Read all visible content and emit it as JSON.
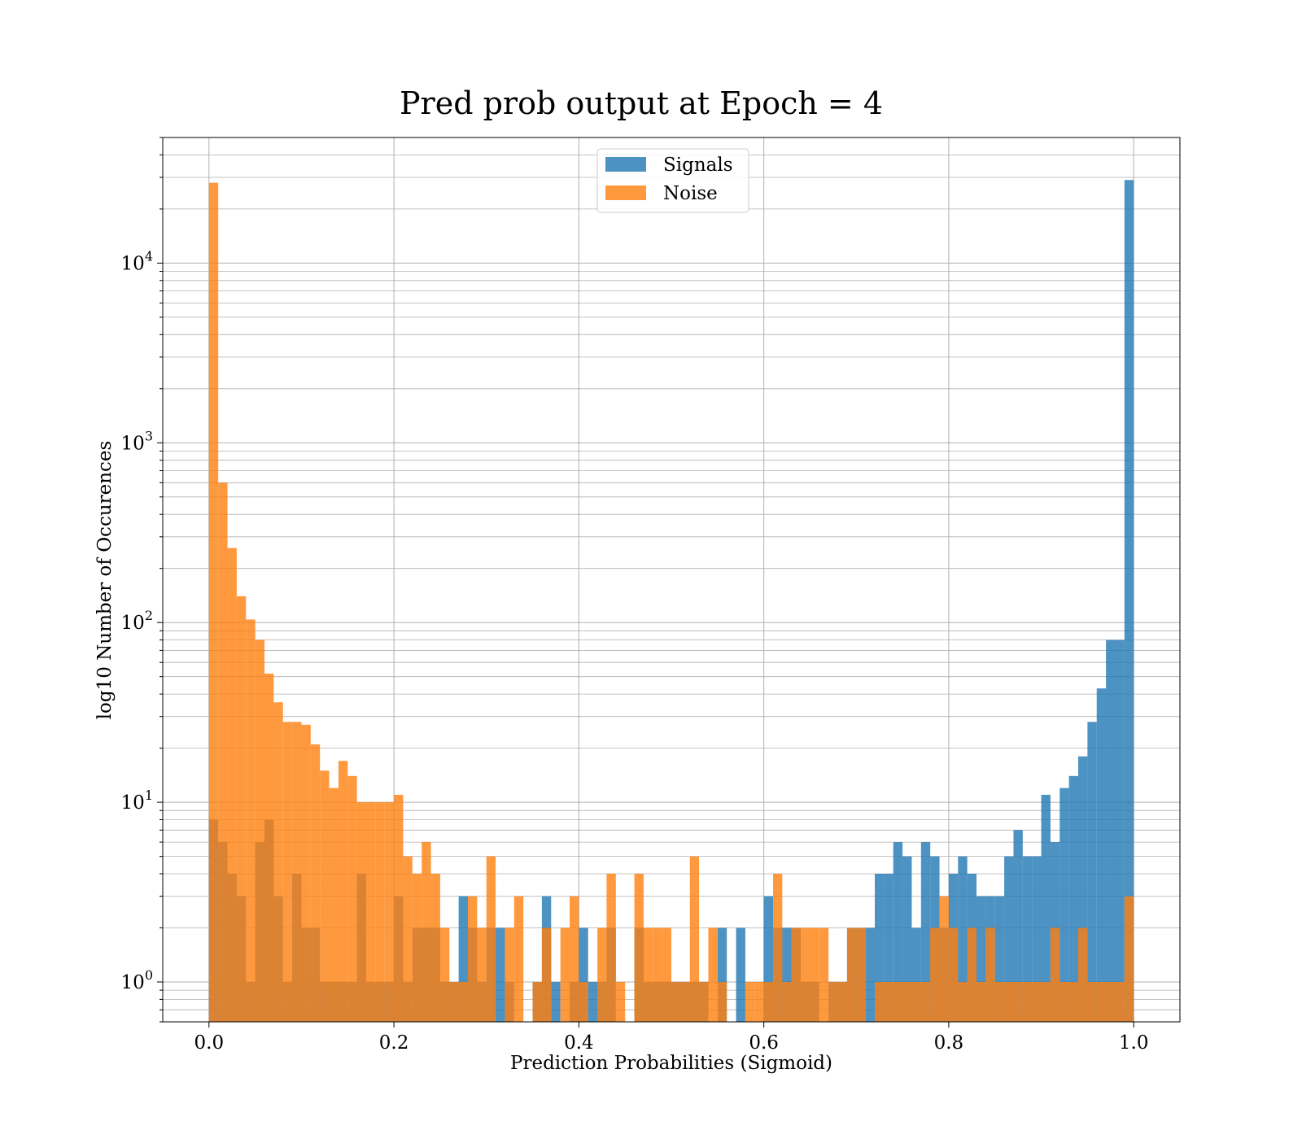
{
  "chart_data": {
    "type": "bar",
    "subtype": "overlaid-histogram",
    "title": "Pred prob output at Epoch = 4",
    "xlabel": "Prediction Probabilities (Sigmoid)",
    "ylabel": "log10 Number of Occurences",
    "xlim": [
      -0.05,
      1.05
    ],
    "ylim": [
      0.6,
      50000
    ],
    "yscale": "log",
    "grid": true,
    "legend_position": "top-center",
    "bin_width": 0.01,
    "x_ticks": [
      0.0,
      0.2,
      0.4,
      0.6,
      0.8,
      1.0
    ],
    "x_tick_labels": [
      "0.0",
      "0.2",
      "0.4",
      "0.6",
      "0.8",
      "1.0"
    ],
    "y_ticks": [
      {
        "value": 1,
        "base": "10",
        "exp": "0"
      },
      {
        "value": 10,
        "base": "10",
        "exp": "1"
      },
      {
        "value": 100,
        "base": "10",
        "exp": "2"
      },
      {
        "value": 1000,
        "base": "10",
        "exp": "3"
      },
      {
        "value": 10000,
        "base": "10",
        "exp": "4"
      }
    ],
    "colors": {
      "signals": "#1f77b4",
      "noise": "#ff7f0e"
    },
    "series": [
      {
        "name": "Signals",
        "color": "#1f77b4",
        "alpha": 0.8,
        "values": [
          8,
          6,
          4,
          3,
          1,
          6,
          8,
          3,
          1,
          4,
          2,
          2,
          1,
          1,
          1,
          1,
          4,
          1,
          1,
          1,
          3,
          1,
          2,
          2,
          2,
          1,
          1,
          3,
          2,
          1,
          2,
          2,
          1,
          0,
          0,
          1,
          3,
          1,
          0,
          1,
          2,
          1,
          1,
          2,
          0,
          0,
          2,
          1,
          1,
          1,
          1,
          1,
          1,
          1,
          0,
          2,
          0,
          2,
          0,
          0,
          3,
          2,
          2,
          2,
          1,
          1,
          0,
          1,
          1,
          2,
          2,
          2,
          4,
          4,
          6,
          5,
          2,
          6,
          5,
          2,
          4,
          5,
          4,
          3,
          3,
          3,
          5,
          7,
          5,
          5,
          11,
          6,
          12,
          14,
          18,
          28,
          43,
          80,
          80,
          29000
        ]
      },
      {
        "name": "Noise",
        "color": "#ff7f0e",
        "alpha": 0.8,
        "values": [
          28000,
          600,
          260,
          140,
          104,
          80,
          52,
          36,
          28,
          28,
          27,
          21,
          15,
          12,
          17,
          14,
          10,
          10,
          10,
          10,
          11,
          5,
          4,
          6,
          4,
          2,
          1,
          1,
          3,
          2,
          5,
          0,
          2,
          3,
          0,
          1,
          2,
          0,
          2,
          3,
          1,
          0,
          2,
          4,
          1,
          0,
          4,
          2,
          2,
          2,
          1,
          1,
          5,
          1,
          2,
          1,
          0,
          0,
          1,
          1,
          1,
          4,
          1,
          2,
          2,
          2,
          2,
          1,
          1,
          2,
          2,
          0,
          1,
          1,
          1,
          1,
          1,
          1,
          2,
          3,
          2,
          1,
          2,
          1,
          2,
          1,
          1,
          1,
          1,
          1,
          1,
          2,
          1,
          1,
          2,
          1,
          1,
          1,
          1,
          3
        ]
      }
    ]
  }
}
